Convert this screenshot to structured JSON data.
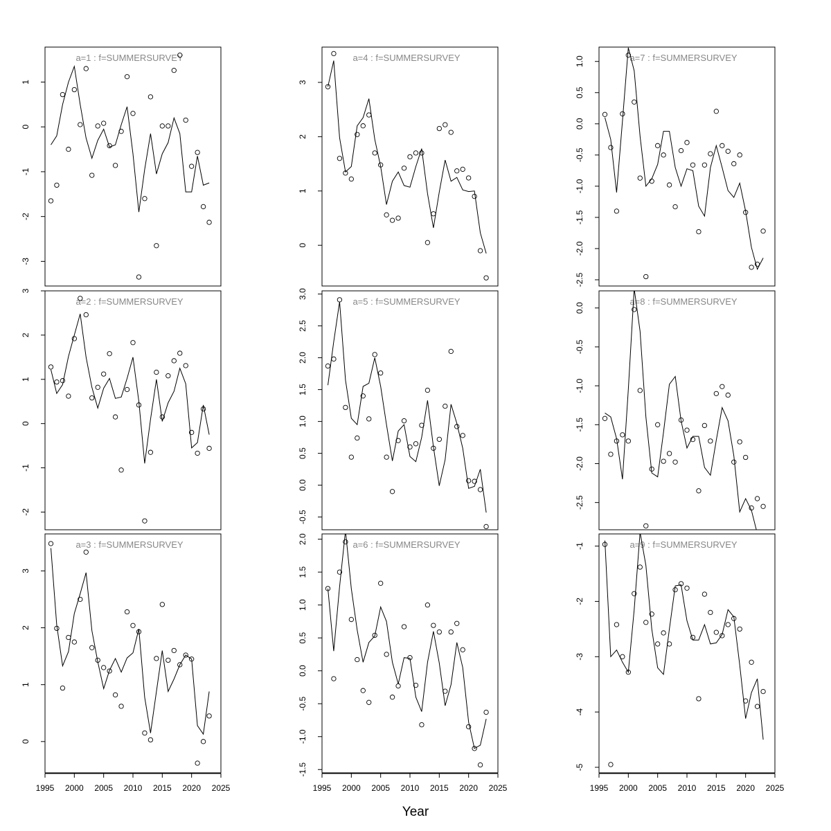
{
  "figure": {
    "xlabel": "Year",
    "x_ticks": [
      1995,
      2000,
      2005,
      2010,
      2015,
      2020,
      2025
    ]
  },
  "chart_data": [
    {
      "type": "line",
      "title": "a=1 : f=SUMMERSURVEY",
      "xlim": [
        1995,
        2025
      ],
      "ylim": [
        -3.55,
        1.78
      ],
      "y_ticks": [
        -3,
        -2,
        -1,
        0,
        1
      ],
      "x": [
        1996,
        1997,
        1998,
        1999,
        2000,
        2001,
        2002,
        2003,
        2004,
        2005,
        2006,
        2007,
        2008,
        2009,
        2010,
        2011,
        2012,
        2013,
        2014,
        2015,
        2016,
        2017,
        2018,
        2019,
        2020,
        2021,
        2022,
        2023
      ],
      "series": [
        {
          "kind": "fitted",
          "values": [
            -0.4,
            -0.2,
            0.5,
            1.0,
            1.35,
            0.5,
            -0.25,
            -0.7,
            -0.3,
            -0.05,
            -0.45,
            -0.4,
            0.05,
            0.45,
            -0.6,
            -1.9,
            -0.95,
            -0.15,
            -1.05,
            -0.6,
            -0.35,
            0.2,
            -0.15,
            -1.45,
            -1.45,
            -0.65,
            -1.3,
            -1.25
          ]
        },
        {
          "kind": "observed",
          "values": [
            -1.65,
            -1.3,
            0.72,
            -0.5,
            0.83,
            0.05,
            1.3,
            -1.08,
            0.02,
            0.08,
            -0.42,
            -0.86,
            -0.1,
            1.12,
            0.3,
            -3.35,
            -1.6,
            0.67,
            -2.65,
            0.02,
            0.02,
            1.26,
            1.6,
            0.15,
            -0.88,
            -0.57,
            -1.78,
            -2.13
          ]
        }
      ]
    },
    {
      "type": "line",
      "title": "a=2 : f=SUMMERSURVEY",
      "xlim": [
        1995,
        2025
      ],
      "ylim": [
        -2.4,
        3.0
      ],
      "y_ticks": [
        -2,
        -1,
        0,
        1,
        2,
        3
      ],
      "x": [
        1996,
        1997,
        1998,
        1999,
        2000,
        2001,
        2002,
        2003,
        2004,
        2005,
        2006,
        2007,
        2008,
        2009,
        2010,
        2011,
        2012,
        2013,
        2014,
        2015,
        2016,
        2017,
        2018,
        2019,
        2020,
        2021,
        2022,
        2023
      ],
      "series": [
        {
          "kind": "fitted",
          "values": [
            1.22,
            0.68,
            0.88,
            1.52,
            2.0,
            2.48,
            1.5,
            0.82,
            0.35,
            0.8,
            1.02,
            0.57,
            0.6,
            1.02,
            1.5,
            0.5,
            -0.9,
            0.1,
            1.0,
            0.05,
            0.47,
            0.73,
            1.25,
            0.9,
            -0.55,
            -0.43,
            0.42,
            -0.25
          ]
        },
        {
          "kind": "observed",
          "values": [
            1.28,
            0.94,
            0.97,
            0.62,
            1.92,
            2.83,
            2.46,
            0.58,
            0.82,
            1.12,
            1.58,
            0.15,
            -1.05,
            0.77,
            1.83,
            0.42,
            -2.2,
            -0.65,
            1.16,
            0.15,
            1.08,
            1.42,
            1.59,
            1.31,
            -0.2,
            -0.67,
            0.33,
            -0.56
          ]
        }
      ]
    },
    {
      "type": "line",
      "title": "a=3 : f=SUMMERSURVEY",
      "xlim": [
        1995,
        2025
      ],
      "ylim": [
        -0.55,
        3.65
      ],
      "y_ticks": [
        0,
        1,
        2,
        3
      ],
      "x": [
        1996,
        1997,
        1998,
        1999,
        2000,
        2001,
        2002,
        2003,
        2004,
        2005,
        2006,
        2007,
        2008,
        2009,
        2010,
        2011,
        2012,
        2013,
        2014,
        2015,
        2016,
        2017,
        2018,
        2019,
        2020,
        2021,
        2022,
        2023
      ],
      "series": [
        {
          "kind": "fitted",
          "values": [
            3.4,
            2.05,
            1.33,
            1.58,
            2.25,
            2.6,
            2.97,
            1.95,
            1.4,
            0.93,
            1.25,
            1.46,
            1.22,
            1.47,
            1.56,
            1.98,
            0.78,
            0.15,
            0.88,
            1.6,
            0.88,
            1.1,
            1.35,
            1.52,
            1.45,
            0.28,
            0.13,
            0.88
          ]
        },
        {
          "kind": "observed",
          "values": [
            3.48,
            1.99,
            0.94,
            1.83,
            1.75,
            2.5,
            3.33,
            1.65,
            1.43,
            1.3,
            1.24,
            0.82,
            0.62,
            2.28,
            2.04,
            1.93,
            0.15,
            0.03,
            1.46,
            2.41,
            1.43,
            1.6,
            1.35,
            1.52,
            1.45,
            -0.38,
            0.0,
            0.45
          ]
        }
      ]
    },
    {
      "type": "line",
      "title": "a=4 : f=SUMMERSURVEY",
      "xlim": [
        1995,
        2025
      ],
      "ylim": [
        -0.75,
        3.65
      ],
      "y_ticks": [
        0,
        1,
        2,
        3
      ],
      "x": [
        1996,
        1997,
        1998,
        1999,
        2000,
        2001,
        2002,
        2003,
        2004,
        2005,
        2006,
        2007,
        2008,
        2009,
        2010,
        2011,
        2012,
        2013,
        2014,
        2015,
        2016,
        2017,
        2018,
        2019,
        2020,
        2021,
        2022,
        2023
      ],
      "series": [
        {
          "kind": "fitted",
          "values": [
            2.92,
            3.4,
            1.98,
            1.35,
            1.45,
            2.2,
            2.35,
            2.7,
            1.95,
            1.45,
            0.75,
            1.18,
            1.35,
            1.1,
            1.07,
            1.45,
            1.78,
            0.95,
            0.32,
            0.98,
            1.57,
            1.18,
            1.25,
            1.02,
            0.99,
            1.0,
            0.23,
            -0.15
          ]
        },
        {
          "kind": "observed",
          "values": [
            2.92,
            3.53,
            1.6,
            1.33,
            1.22,
            2.04,
            2.2,
            2.4,
            1.7,
            1.48,
            0.56,
            0.46,
            0.5,
            1.42,
            1.63,
            1.7,
            1.7,
            0.05,
            0.58,
            2.15,
            2.22,
            2.08,
            1.37,
            1.4,
            1.24,
            0.9,
            -0.1,
            -0.6
          ]
        }
      ]
    },
    {
      "type": "line",
      "title": "a=5 : f=SUMMERSURVEY",
      "xlim": [
        1995,
        2025
      ],
      "ylim": [
        -0.7,
        3.05
      ],
      "y_ticks": [
        -0.5,
        0.0,
        0.5,
        1.0,
        1.5,
        2.0,
        2.5,
        3.0
      ],
      "x": [
        1996,
        1997,
        1998,
        1999,
        2000,
        2001,
        2002,
        2003,
        2004,
        2005,
        2006,
        2007,
        2008,
        2009,
        2010,
        2011,
        2012,
        2013,
        2014,
        2015,
        2016,
        2017,
        2018,
        2019,
        2020,
        2021,
        2022,
        2023
      ],
      "series": [
        {
          "kind": "fitted",
          "values": [
            1.57,
            2.25,
            2.88,
            1.65,
            1.05,
            0.95,
            1.55,
            1.6,
            2.0,
            1.55,
            0.95,
            0.38,
            0.85,
            0.95,
            0.45,
            0.37,
            0.75,
            1.33,
            0.6,
            -0.01,
            0.4,
            1.27,
            0.97,
            0.58,
            -0.05,
            -0.02,
            0.25,
            -0.43
          ]
        },
        {
          "kind": "observed",
          "values": [
            1.87,
            1.98,
            2.91,
            1.22,
            0.44,
            0.74,
            1.4,
            1.04,
            2.05,
            1.76,
            0.44,
            -0.1,
            0.7,
            1.01,
            0.6,
            0.65,
            0.94,
            1.49,
            0.58,
            0.72,
            1.24,
            2.1,
            0.92,
            0.78,
            0.07,
            0.06,
            -0.07,
            -0.65
          ]
        }
      ]
    },
    {
      "type": "line",
      "title": "a=6 : f=SUMMERSURVEY",
      "xlim": [
        1995,
        2025
      ],
      "ylim": [
        -1.55,
        2.08
      ],
      "y_ticks": [
        -1.5,
        -1.0,
        -0.5,
        0.0,
        0.5,
        1.0,
        1.5,
        2.0
      ],
      "x": [
        1996,
        1997,
        1998,
        1999,
        2000,
        2001,
        2002,
        2003,
        2004,
        2005,
        2006,
        2007,
        2008,
        2009,
        2010,
        2011,
        2012,
        2013,
        2014,
        2015,
        2016,
        2017,
        2018,
        2019,
        2020,
        2021,
        2022,
        2023
      ],
      "series": [
        {
          "kind": "fitted",
          "values": [
            1.25,
            0.3,
            1.28,
            2.13,
            1.25,
            0.62,
            0.13,
            0.43,
            0.53,
            0.97,
            0.75,
            0.13,
            -0.2,
            0.2,
            0.19,
            -0.4,
            -0.62,
            0.13,
            0.6,
            0.12,
            -0.53,
            -0.21,
            0.43,
            0.05,
            -0.78,
            -1.18,
            -1.13,
            -0.73
          ]
        },
        {
          "kind": "observed",
          "values": [
            1.25,
            -0.12,
            1.5,
            1.96,
            0.78,
            0.17,
            -0.3,
            -0.48,
            0.54,
            1.33,
            0.25,
            -0.4,
            -0.23,
            0.67,
            0.2,
            -0.22,
            -0.82,
            1.0,
            0.69,
            0.59,
            -0.31,
            0.59,
            0.72,
            0.32,
            -0.85,
            -1.18,
            -1.43,
            -0.63
          ]
        }
      ]
    },
    {
      "type": "line",
      "title": "a=7 : f=SUMMERSURVEY",
      "xlim": [
        1995,
        2025
      ],
      "ylim": [
        -2.6,
        1.23
      ],
      "y_ticks": [
        -2.5,
        -2.0,
        -1.5,
        -1.0,
        -0.5,
        0.0,
        0.5,
        1.0
      ],
      "x": [
        1996,
        1997,
        1998,
        1999,
        2000,
        2001,
        2002,
        2003,
        2004,
        2005,
        2006,
        2007,
        2008,
        2009,
        2010,
        2011,
        2012,
        2013,
        2014,
        2015,
        2016,
        2017,
        2018,
        2019,
        2020,
        2021,
        2022,
        2023
      ],
      "series": [
        {
          "kind": "fitted",
          "values": [
            0.1,
            -0.25,
            -1.1,
            0.05,
            1.22,
            0.85,
            -0.2,
            -1.0,
            -0.88,
            -0.65,
            -0.12,
            -0.12,
            -0.7,
            -1.0,
            -0.72,
            -0.75,
            -1.32,
            -1.48,
            -0.7,
            -0.35,
            -0.7,
            -1.07,
            -1.18,
            -0.95,
            -1.4,
            -1.98,
            -2.33,
            -2.15
          ]
        },
        {
          "kind": "observed",
          "values": [
            0.15,
            -0.38,
            -1.4,
            0.16,
            1.1,
            0.35,
            -0.87,
            -2.45,
            -0.92,
            -0.35,
            -0.5,
            -0.98,
            -1.33,
            -0.43,
            -0.3,
            -0.66,
            -1.73,
            -0.66,
            -0.48,
            0.2,
            -0.35,
            -0.44,
            -0.64,
            -0.5,
            -1.42,
            -2.3,
            -2.25,
            -1.72
          ]
        }
      ]
    },
    {
      "type": "line",
      "title": "a=8 : f=SUMMERSURVEY",
      "xlim": [
        1995,
        2025
      ],
      "ylim": [
        -2.85,
        0.22
      ],
      "y_ticks": [
        -2.5,
        -2.0,
        -1.5,
        -1.0,
        -0.5,
        0.0
      ],
      "x": [
        1996,
        1997,
        1998,
        1999,
        2000,
        2001,
        2002,
        2003,
        2004,
        2005,
        2006,
        2007,
        2008,
        2009,
        2010,
        2011,
        2012,
        2013,
        2014,
        2015,
        2016,
        2017,
        2018,
        2019,
        2020,
        2021,
        2022,
        2023
      ],
      "series": [
        {
          "kind": "fitted",
          "values": [
            -1.35,
            -1.4,
            -1.68,
            -2.2,
            -1.05,
            0.25,
            -0.3,
            -1.4,
            -2.12,
            -2.17,
            -1.6,
            -0.98,
            -0.88,
            -1.45,
            -1.8,
            -1.65,
            -1.65,
            -2.05,
            -2.15,
            -1.7,
            -1.28,
            -1.45,
            -1.9,
            -2.62,
            -2.45,
            -2.6,
            -2.9,
            -2.9
          ]
        },
        {
          "kind": "observed",
          "values": [
            -1.42,
            -1.88,
            -1.71,
            -1.63,
            -1.71,
            -0.02,
            -1.06,
            -2.8,
            -2.07,
            -1.5,
            -1.97,
            -1.87,
            -1.98,
            -1.44,
            -1.57,
            -1.69,
            -2.35,
            -1.51,
            -1.71,
            -1.1,
            -1.01,
            -1.12,
            -1.98,
            -1.72,
            -1.92,
            -2.57,
            -2.45,
            -2.55
          ]
        }
      ]
    },
    {
      "type": "line",
      "title": "a=9 : f=SUMMERSURVEY",
      "xlim": [
        1995,
        2025
      ],
      "ylim": [
        -5.1,
        -0.78
      ],
      "y_ticks": [
        -5,
        -4,
        -3,
        -2,
        -1
      ],
      "x": [
        1996,
        1997,
        1998,
        1999,
        2000,
        2001,
        2002,
        2003,
        2004,
        2005,
        2006,
        2007,
        2008,
        2009,
        2010,
        2011,
        2012,
        2013,
        2014,
        2015,
        2016,
        2017,
        2018,
        2019,
        2020,
        2021,
        2022,
        2023
      ],
      "series": [
        {
          "kind": "fitted",
          "values": [
            -0.9,
            -3.0,
            -2.88,
            -3.1,
            -3.28,
            -2.15,
            -0.75,
            -1.35,
            -2.5,
            -3.2,
            -3.32,
            -2.5,
            -1.72,
            -1.7,
            -2.35,
            -2.7,
            -2.7,
            -2.42,
            -2.77,
            -2.75,
            -2.6,
            -2.15,
            -2.28,
            -3.15,
            -4.12,
            -3.65,
            -3.4,
            -4.5
          ]
        },
        {
          "kind": "observed",
          "values": [
            -0.97,
            -4.95,
            -2.42,
            -3.0,
            -3.28,
            -1.86,
            -1.38,
            -2.38,
            -2.23,
            -2.77,
            -2.57,
            -2.77,
            -1.79,
            -1.68,
            -1.76,
            -2.65,
            -3.76,
            -1.87,
            -2.2,
            -2.56,
            -2.62,
            -2.42,
            -2.31,
            -2.5,
            -3.8,
            -3.1,
            -3.9,
            -3.63
          ]
        }
      ]
    }
  ]
}
